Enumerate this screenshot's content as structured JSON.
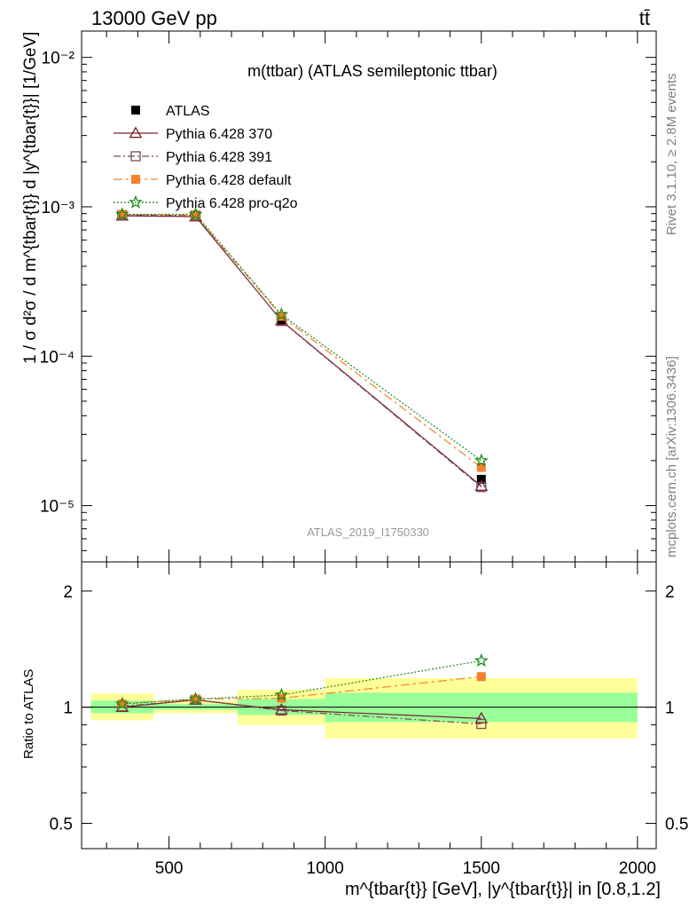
{
  "header": {
    "left": "13000 GeV pp",
    "right": "tt̄"
  },
  "side": {
    "rivet": "Rivet 3.1.10, ≥ 2.8M events",
    "mcplots": "mcplots.cern.ch [arXiv:1306.3436]"
  },
  "chart_data": [
    {
      "type": "line",
      "panel": "main",
      "title": "m(ttbar) (ATLAS semileptonic ttbar)",
      "watermark": "ATLAS_2019_I1750330",
      "ylabel": "1 / σ d²σ / d m^{tbar{t}} d |y^{tbar{t}}| [1/GeV]",
      "yscale": "log",
      "ylim": [
        4.2e-06,
        0.015
      ],
      "xlim": [
        220,
        2060
      ],
      "y_ticks": [
        {
          "value": 1e-05,
          "label": "10⁻⁵"
        },
        {
          "value": 0.0001,
          "label": "10⁻⁴"
        },
        {
          "value": 0.001,
          "label": "10⁻³"
        },
        {
          "value": 0.01,
          "label": "10⁻²"
        }
      ],
      "legend_position": "top-left",
      "data": {
        "x": [
          350,
          585,
          860,
          1500
        ],
        "series": [
          {
            "name": "ATLAS",
            "values": [
              0.00087,
              0.00087,
              0.000175,
              1.5e-05
            ],
            "color": "#000000",
            "marker": "square",
            "dash": "none"
          },
          {
            "name": "Pythia 6.428 370",
            "values": [
              0.00087,
              0.00086,
              0.000173,
              1.35e-05
            ],
            "color": "#7a1f2b",
            "marker": "triangle-open",
            "dash": "solid"
          },
          {
            "name": "Pythia 6.428 391",
            "values": [
              0.00088,
              0.000875,
              0.000172,
              1.33e-05
            ],
            "color": "#7a4b55",
            "marker": "square-open",
            "dash": "dashdot"
          },
          {
            "name": "Pythia 6.428 default",
            "values": [
              0.00089,
              0.00088,
              0.000185,
              1.8e-05
            ],
            "color": "#f5822a",
            "marker": "square",
            "dash": "dashdot-long"
          },
          {
            "name": "Pythia 6.428 pro-q2o",
            "values": [
              0.00089,
              0.00089,
              0.00019,
              2e-05
            ],
            "color": "#1a8a1a",
            "marker": "star",
            "dash": "dotted"
          }
        ]
      }
    },
    {
      "type": "line",
      "panel": "ratio",
      "ylabel": "Ratio to ATLAS",
      "xlabel": "m^{tbar{t}} [GeV], |y^{tbar{t}}| in [0.8,1.2]",
      "yscale": "log",
      "ylim": [
        0.43,
        2.38
      ],
      "xlim": [
        220,
        2060
      ],
      "x_ticks": [
        500,
        1000,
        1500,
        2000
      ],
      "y_ticks": [
        {
          "value": 0.5,
          "label": "0.5"
        },
        {
          "value": 1,
          "label": "1"
        },
        {
          "value": 2,
          "label": "2"
        }
      ],
      "bands": [
        {
          "x_range": [
            250,
            450
          ],
          "inner": [
            0.965,
            1.04
          ],
          "outer": [
            0.925,
            1.085
          ]
        },
        {
          "x_range": [
            450,
            720
          ],
          "inner": [
            0.985,
            1.02
          ],
          "outer": [
            0.965,
            1.04
          ]
        },
        {
          "x_range": [
            720,
            1000
          ],
          "inner": [
            0.955,
            1.05
          ],
          "outer": [
            0.9,
            1.11
          ]
        },
        {
          "x_range": [
            1000,
            2000
          ],
          "inner": [
            0.915,
            1.09
          ],
          "outer": [
            0.83,
            1.19
          ]
        }
      ],
      "data": {
        "x": [
          350,
          585,
          860,
          1500
        ],
        "series": [
          {
            "name": "Pythia 6.428 370",
            "values": [
              1.0,
              1.045,
              0.985,
              0.935
            ],
            "color": "#7a1f2b",
            "marker": "triangle-open",
            "dash": "solid"
          },
          {
            "name": "Pythia 6.428 391",
            "values": [
              1.005,
              1.045,
              0.98,
              0.905
            ],
            "color": "#7a4b55",
            "marker": "square-open",
            "dash": "dashdot"
          },
          {
            "name": "Pythia 6.428 default",
            "values": [
              1.02,
              1.05,
              1.055,
              1.2
            ],
            "color": "#f5822a",
            "marker": "square",
            "dash": "dashdot-long"
          },
          {
            "name": "Pythia 6.428 pro-q2o",
            "values": [
              1.02,
              1.05,
              1.075,
              1.32
            ],
            "color": "#1a8a1a",
            "marker": "star",
            "dash": "dotted"
          }
        ]
      }
    }
  ]
}
